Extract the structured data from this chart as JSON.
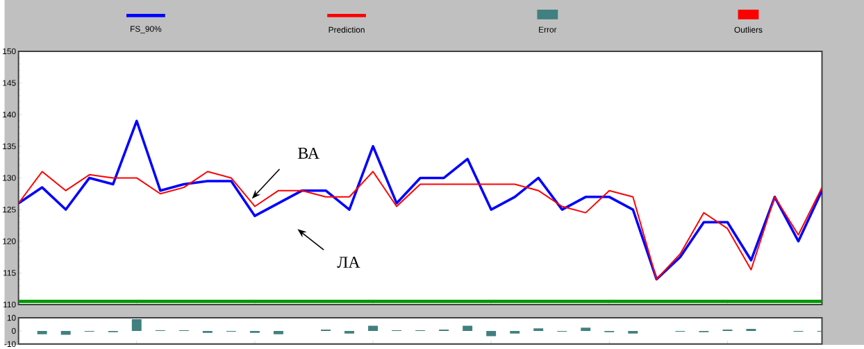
{
  "chart_data": [
    {
      "type": "line",
      "categories": [
        null,
        null,
        null,
        null,
        null,
        null,
        null,
        null,
        null,
        null,
        null,
        null,
        null,
        null,
        null,
        null,
        null,
        null,
        null,
        null,
        null,
        null,
        null,
        null,
        null,
        null,
        null,
        null,
        null,
        null,
        null,
        null,
        null,
        null,
        null
      ],
      "ylim": [
        110,
        150
      ],
      "yticks": [
        110,
        115,
        120,
        125,
        130,
        135,
        140,
        145,
        150
      ],
      "legend": "top",
      "series": [
        {
          "name": "FS_90%",
          "color": "#0000ff",
          "values": [
            126,
            128.5,
            125,
            130,
            129,
            139,
            128,
            129,
            129.5,
            129.5,
            124,
            126,
            128,
            128,
            125,
            135,
            126,
            130,
            130,
            133,
            125,
            127,
            130,
            125,
            127,
            127,
            125,
            114,
            117.5,
            123,
            123,
            117,
            127,
            120,
            128
          ]
        },
        {
          "name": "Prediction",
          "color": "#ff0000",
          "values": [
            126,
            131,
            128,
            130.5,
            130,
            130,
            127.5,
            128.5,
            131,
            130,
            125.5,
            128,
            128,
            127,
            127,
            131,
            125.5,
            129,
            129,
            129,
            129,
            129,
            128,
            125.5,
            124.5,
            128,
            127,
            114,
            118,
            124.5,
            122,
            115.5,
            127,
            121,
            128.5
          ]
        }
      ],
      "ref_lines": [
        {
          "axis": "y",
          "value": 110.5,
          "color": "#009900"
        }
      ],
      "annotations": [
        "ВА",
        "ЛА"
      ]
    },
    {
      "type": "bar",
      "categories": [
        null,
        null,
        null,
        null,
        null,
        null,
        null,
        null,
        null,
        null,
        null,
        null,
        null,
        null,
        null,
        null,
        null,
        null,
        null,
        null,
        null,
        null,
        null,
        null,
        null,
        null,
        null,
        null,
        null,
        null,
        null,
        null,
        null,
        null,
        null
      ],
      "ylim": [
        -10,
        10
      ],
      "yticks": [
        -10,
        0,
        10
      ],
      "legend": "top",
      "series": [
        {
          "name": "Error",
          "color": "#408080",
          "values": [
            0,
            -2.5,
            -3,
            -0.5,
            -1,
            9,
            0.5,
            0.5,
            -1.5,
            -0.5,
            -1.5,
            -2.5,
            0,
            1,
            -2,
            4,
            0.5,
            0.5,
            1,
            4,
            -4,
            -2,
            2,
            -0.5,
            2.5,
            -1,
            -2,
            0,
            -0.5,
            -1,
            1,
            1.5,
            0,
            -0.5,
            -0.5
          ]
        },
        {
          "name": "Outliers",
          "color": "#ff0000",
          "values": [
            null,
            null,
            null,
            null,
            null,
            null,
            null,
            null,
            null,
            null,
            null,
            null,
            null,
            null,
            null,
            null,
            null,
            null,
            null,
            null,
            null,
            null,
            null,
            null,
            null,
            null,
            null,
            null,
            null,
            null,
            null,
            null,
            null,
            null,
            null
          ]
        }
      ]
    }
  ]
}
